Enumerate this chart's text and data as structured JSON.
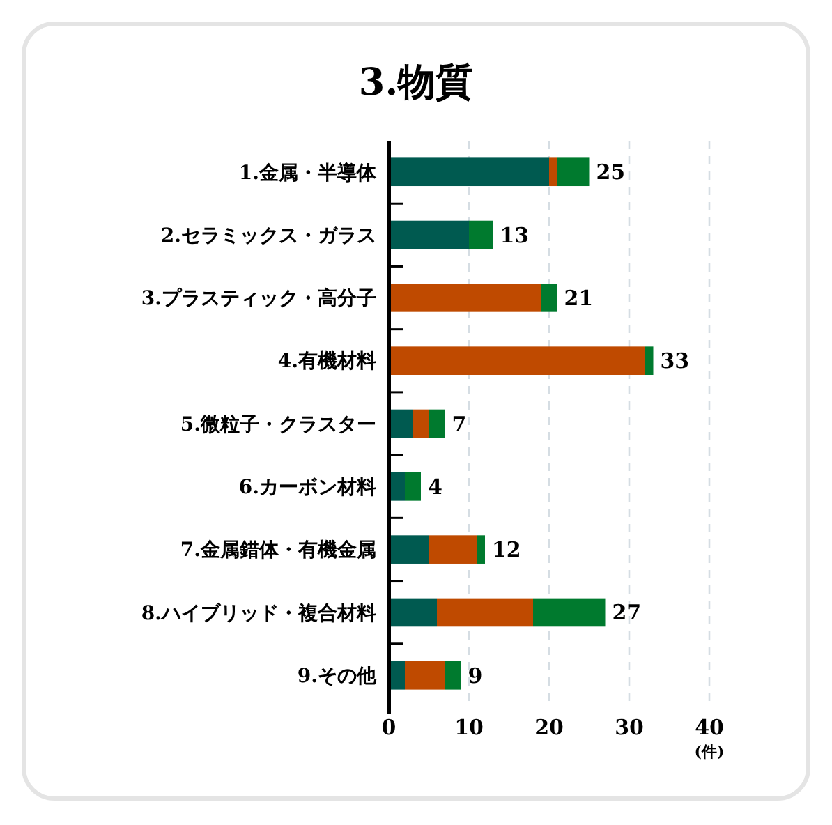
{
  "chart_data": {
    "type": "bar",
    "title": "3.物質",
    "orientation": "horizontal",
    "stacked": true,
    "xlabel": "(件)",
    "categories": [
      "1.金属・半導体",
      "2.セラミックス・ガラス",
      "3.プラスティック・高分子",
      "4.有機材料",
      "5.微粒子・クラスター",
      "6.カーボン材料",
      "7.金属錯体・有機金属",
      "8.ハイブリッド・複合材料",
      "9.その他"
    ],
    "series": [
      {
        "color": "#005a50",
        "values": [
          20,
          10,
          0,
          0,
          3,
          2,
          5,
          6,
          2
        ]
      },
      {
        "color": "#bf4a00",
        "values": [
          1,
          0,
          19,
          32,
          2,
          0,
          6,
          12,
          5
        ]
      },
      {
        "color": "#007a2e",
        "values": [
          4,
          3,
          2,
          1,
          2,
          2,
          1,
          9,
          2
        ]
      }
    ],
    "totals": [
      "25",
      "13",
      "21",
      "33",
      "7",
      "4",
      "12",
      "27",
      "9"
    ],
    "xlim": [
      0,
      40
    ],
    "xticks": [
      0,
      10,
      20,
      30,
      40
    ],
    "grid": "x"
  }
}
